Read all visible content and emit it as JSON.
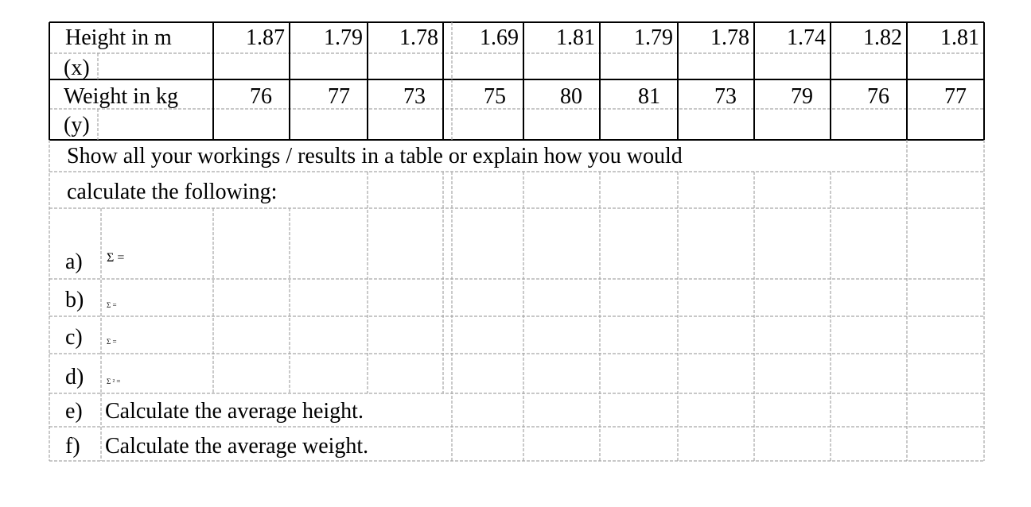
{
  "table": {
    "height_label": "Height in m",
    "height_unit_symbol": "(x)",
    "weight_label": "Weight in kg",
    "weight_unit_symbol": "(y)",
    "heights": [
      "1.87",
      "1.79",
      "1.78",
      "1.69",
      "1.81",
      "1.79",
      "1.78",
      "1.74",
      "1.82",
      "1.81"
    ],
    "weights": [
      "76",
      "77",
      "73",
      "75",
      "80",
      "81",
      "73",
      "79",
      "76",
      "77"
    ]
  },
  "instructions": {
    "line1": "Show all your workings / results in a table or explain how you would",
    "line2": "calculate the following:"
  },
  "questions": [
    {
      "label": "a)",
      "text": "Σ ="
    },
    {
      "label": "b)",
      "text": "Σ ="
    },
    {
      "label": "c)",
      "text": "Σ  ="
    },
    {
      "label": "d)",
      "text": "Σ ² ="
    },
    {
      "label": "e)",
      "text": "Calculate the average height."
    },
    {
      "label": "f)",
      "text": "Calculate the average weight."
    }
  ],
  "colors": {
    "solid_border": "#000000",
    "dashed_border": "#a6a6a6"
  }
}
